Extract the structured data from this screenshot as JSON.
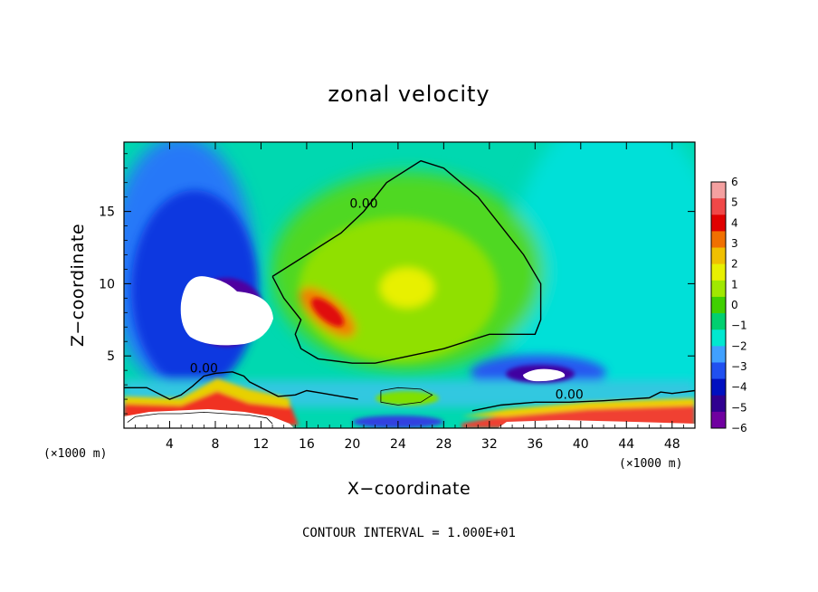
{
  "chart_data": {
    "type": "heatmap",
    "title": "zonal velocity",
    "xlabel": "X−coordinate",
    "ylabel": "Z−coordinate",
    "x_unit": "(×1000 m)",
    "x_ticks": [
      4,
      8,
      12,
      16,
      20,
      24,
      28,
      32,
      36,
      40,
      44,
      48
    ],
    "y_ticks": [
      5,
      10,
      15
    ],
    "xlim": [
      0,
      50
    ],
    "ylim": [
      0,
      19.8
    ],
    "colorbar": {
      "levels": [
        6,
        5,
        4,
        3,
        2,
        1,
        0,
        -1,
        -2,
        -3,
        -4,
        -5,
        -6
      ],
      "labels": [
        "6",
        "5",
        "4",
        "3",
        "2",
        "1",
        "0",
        "−1",
        "−2",
        "−3",
        "−4",
        "−5",
        "−6"
      ],
      "colors": [
        "#f4a0a0",
        "#f04848",
        "#e00000",
        "#f07000",
        "#f0c000",
        "#e8f000",
        "#a0e800",
        "#40d000",
        "#00d070",
        "#00e8d0",
        "#40a0ff",
        "#2050f0",
        "#0010c0",
        "#300090",
        "#7000a0"
      ]
    },
    "contour_lines": [
      {
        "label": "0.00",
        "points": [
          [
            13,
            10.5
          ],
          [
            16,
            12
          ],
          [
            19,
            13.5
          ],
          [
            21,
            15
          ],
          [
            23,
            17
          ],
          [
            26,
            18.5
          ],
          [
            28,
            18
          ],
          [
            31,
            16
          ],
          [
            33,
            14
          ],
          [
            35,
            12
          ],
          [
            36.5,
            10
          ],
          [
            36.5,
            7.5
          ],
          [
            36,
            6.5
          ],
          [
            34,
            6.5
          ],
          [
            32,
            6.5
          ],
          [
            30,
            6
          ],
          [
            28,
            5.5
          ],
          [
            25,
            5
          ],
          [
            22,
            4.5
          ],
          [
            20,
            4.5
          ],
          [
            17,
            4.8
          ],
          [
            15.5,
            5.5
          ],
          [
            15,
            6.5
          ],
          [
            15.5,
            7.5
          ],
          [
            14,
            9
          ],
          [
            13,
            10.5
          ]
        ]
      },
      {
        "label": "0.00",
        "points": [
          [
            0,
            2.8
          ],
          [
            2,
            2.8
          ],
          [
            4,
            2
          ],
          [
            5,
            2.3
          ],
          [
            6,
            2.9
          ],
          [
            7,
            3.6
          ],
          [
            8,
            3.8
          ],
          [
            9.5,
            3.9
          ],
          [
            10.5,
            3.6
          ],
          [
            11,
            3.2
          ],
          [
            12.5,
            2.6
          ],
          [
            13.5,
            2.2
          ],
          [
            15,
            2.3
          ],
          [
            16,
            2.6
          ],
          [
            17.5,
            2.4
          ],
          [
            19,
            2.2
          ],
          [
            20.5,
            2
          ]
        ]
      },
      {
        "label": "0.00",
        "points": [
          [
            30.5,
            1.2
          ],
          [
            33,
            1.6
          ],
          [
            36,
            1.8
          ],
          [
            39,
            1.8
          ],
          [
            42,
            1.9
          ],
          [
            44,
            2
          ],
          [
            46,
            2.1
          ],
          [
            47,
            2.5
          ],
          [
            48,
            2.4
          ],
          [
            50,
            2.6
          ]
        ]
      },
      {
        "label": "",
        "points": [
          [
            22.5,
            2.6
          ],
          [
            24,
            2.8
          ],
          [
            26,
            2.7
          ],
          [
            27,
            2.3
          ],
          [
            26,
            1.8
          ],
          [
            24,
            1.6
          ],
          [
            22.5,
            1.8
          ],
          [
            22.5,
            2.6
          ]
        ]
      },
      {
        "label": "",
        "points": [
          [
            0.3,
            0.4
          ],
          [
            1,
            0.8
          ],
          [
            3,
            1
          ],
          [
            5,
            1
          ],
          [
            7,
            1.1
          ],
          [
            9,
            1
          ],
          [
            11,
            0.9
          ],
          [
            12.5,
            0.7
          ],
          [
            13,
            0.3
          ]
        ]
      }
    ],
    "features": [
      {
        "kind": "minimum",
        "x": 7.5,
        "z": 8.5,
        "value": -6
      },
      {
        "kind": "maximum",
        "x": 18,
        "z": 8,
        "value": 4
      },
      {
        "kind": "minimum",
        "x": 36.5,
        "z": 3.5,
        "value": -6
      }
    ]
  },
  "footer_note": "CONTOUR INTERVAL = 1.000E+01"
}
